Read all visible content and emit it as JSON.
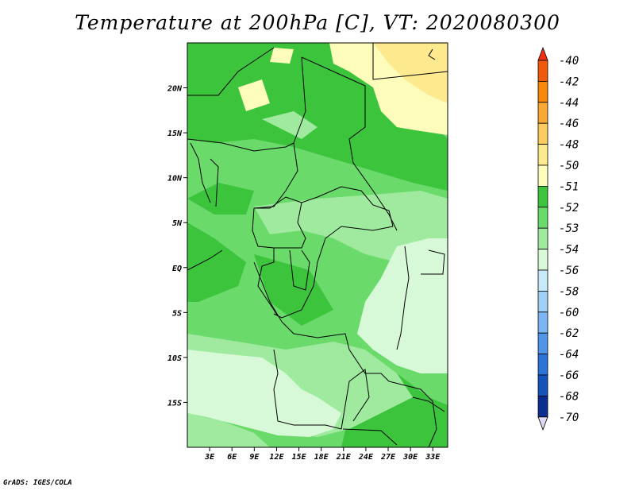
{
  "title": "Temperature at 200hPa [C], VT: 2020080300",
  "footer": "GrADS: IGES/COLA",
  "map": {
    "lat_range": [
      -20,
      25
    ],
    "lon_range": [
      0,
      35
    ],
    "lat_ticks": [
      {
        "value": 20,
        "label": "20N"
      },
      {
        "value": 15,
        "label": "15N"
      },
      {
        "value": 10,
        "label": "10N"
      },
      {
        "value": 5,
        "label": "5N"
      },
      {
        "value": 0,
        "label": "EQ"
      },
      {
        "value": -5,
        "label": "5S"
      },
      {
        "value": -10,
        "label": "10S"
      },
      {
        "value": -15,
        "label": "15S"
      }
    ],
    "lon_ticks": [
      {
        "value": 3,
        "label": "3E"
      },
      {
        "value": 6,
        "label": "6E"
      },
      {
        "value": 9,
        "label": "9E"
      },
      {
        "value": 12,
        "label": "12E"
      },
      {
        "value": 15,
        "label": "15E"
      },
      {
        "value": 18,
        "label": "18E"
      },
      {
        "value": 21,
        "label": "21E"
      },
      {
        "value": 24,
        "label": "24E"
      },
      {
        "value": 27,
        "label": "27E"
      },
      {
        "value": 30,
        "label": "30E"
      },
      {
        "value": 33,
        "label": "33E"
      }
    ]
  },
  "colorbar": {
    "levels": [
      "-40",
      "-42",
      "-44",
      "-46",
      "-48",
      "-50",
      "-51",
      "-52",
      "-53",
      "-54",
      "-56",
      "-58",
      "-60",
      "-62",
      "-64",
      "-66",
      "-68",
      "-70"
    ],
    "colors": [
      "#f03010",
      "#f05a0a",
      "#f7880c",
      "#f9a833",
      "#fccc60",
      "#fde98e",
      "#fefcbb",
      "#3dc43d",
      "#6ada6a",
      "#9fea9f",
      "#d8f9d8",
      "#c6eafa",
      "#a0d0f7",
      "#7ab4f2",
      "#4f95e8",
      "#2b73d8",
      "#1552bb",
      "#0a2c90",
      "#050f5a"
    ],
    "under_color": "#e1d9f2"
  }
}
